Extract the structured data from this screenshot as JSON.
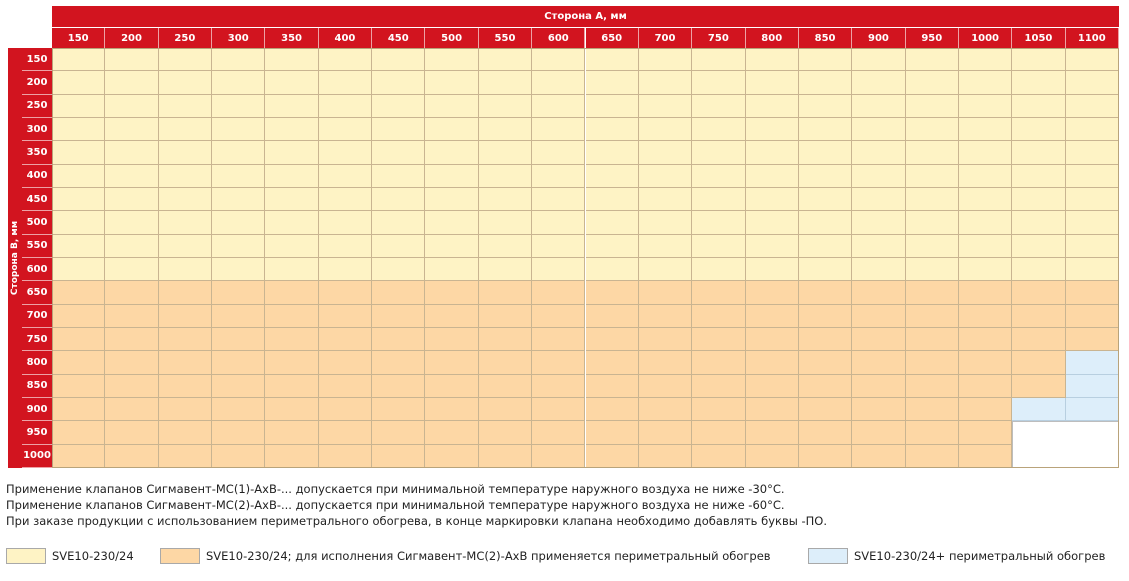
{
  "table": {
    "header_a": "Сторона А, мм",
    "header_b": "Сторона В, мм",
    "cols": [
      "150",
      "200",
      "250",
      "300",
      "350",
      "400",
      "450",
      "500",
      "550",
      "600",
      "650",
      "700",
      "750",
      "800",
      "850",
      "900",
      "950",
      "1000",
      "1050",
      "1100"
    ],
    "rows": [
      "150",
      "200",
      "250",
      "300",
      "350",
      "400",
      "450",
      "500",
      "550",
      "600",
      "650",
      "700",
      "750",
      "800",
      "850",
      "900",
      "950",
      "1000"
    ],
    "colors": {
      "yellow": "#fef3c5",
      "orange": "#fdd7a5",
      "blue": "#ddeefa",
      "white": "#ffffff",
      "red": "#d2141f"
    },
    "cell_types": [
      "yyyyyyyyyyyyyyyyyyyy",
      "yyyyyyyyyyyyyyyyyyyy",
      "yyyyyyyyyyyyyyyyyyyy",
      "yyyyyyyyyyyyyyyyyyyy",
      "yyyyyyyyyyyyyyyyyyyy",
      "yyyyyyyyyyyyyyyyyyyy",
      "yyyyyyyyyyyyyyyyyyyy",
      "yyyyyyyyyyyyyyyyyyyy",
      "yyyyyyyyyyyyyyyyyyyy",
      "yyyyyyyyyyyyyyyyyyyy",
      "oooooooooooooooooooo",
      "oooooooooooooooooooo",
      "oooooooooooooooooooo",
      "ooooooooooooooooooob",
      "ooooooooooooooooooob",
      "oooooooooooooooooobb",
      "oooooooooooooooooo__",
      "oooooooooooooooooo__"
    ]
  },
  "notes": [
    "Применение клапанов Сигмавент-МС(1)-АхВ-... допускается при минимальной температуре наружного воздуха не ниже -30°С.",
    "Применение клапанов Сигмавент-МС(2)-АхВ-... допускается при минимальной температуре наружного воздуха не ниже -60°С.",
    "При заказе продукции с использованием периметрального обогрева, в конце маркировки клапана необходимо добавлять буквы -ПО."
  ],
  "legend": [
    {
      "label": "SVE10-230/24",
      "color": "#fef3c5"
    },
    {
      "label": "SVE10-230/24; для исполнения Сигмавент-МС(2)-АхВ применяется периметральный обогрев",
      "color": "#fdd7a5"
    },
    {
      "label": "SVE10-230/24+ периметральный обогрев",
      "color": "#ddeefa"
    }
  ]
}
